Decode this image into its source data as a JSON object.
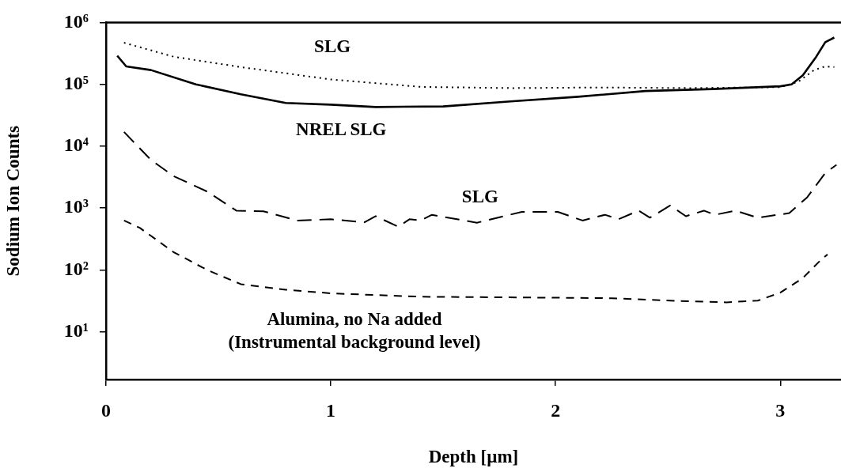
{
  "chart_data": {
    "type": "line",
    "xlabel": "Depth [µm]",
    "ylabel": "Sodium Ion Counts",
    "log": "y",
    "grid": false,
    "marker": "none",
    "xlim": [
      0,
      3.27
    ],
    "xticks": [
      0,
      1,
      2,
      3
    ],
    "ylim": [
      1.7,
      1000000
    ],
    "yticks": [
      {
        "value": 10,
        "label": "10¹"
      },
      {
        "value": 100,
        "label": "10²"
      },
      {
        "value": 1000,
        "label": "10³"
      },
      {
        "value": 10000,
        "label": "10⁴"
      },
      {
        "value": 100000,
        "label": "10⁵"
      },
      {
        "value": 1000000,
        "label": "10⁶"
      }
    ],
    "series": [
      {
        "name": "SLG",
        "color": "#000000",
        "line_style": "dotted",
        "x": [
          0.08,
          0.3,
          0.6,
          1.0,
          1.4,
          1.8,
          2.2,
          2.6,
          3.0,
          3.08,
          3.15,
          3.2,
          3.24
        ],
        "values": [
          470000,
          280000,
          190000,
          120000,
          91000,
          87000,
          89000,
          87000,
          90000,
          110000,
          170000,
          195000,
          190000
        ]
      },
      {
        "name": "NREL SLG",
        "color": "#000000",
        "line_style": "solid",
        "x": [
          0.05,
          0.09,
          0.2,
          0.4,
          0.6,
          0.8,
          1.0,
          1.2,
          1.5,
          1.8,
          2.1,
          2.4,
          2.7,
          3.0,
          3.05,
          3.1,
          3.16,
          3.2,
          3.24
        ],
        "values": [
          290000,
          195000,
          170000,
          100000,
          69000,
          50000,
          47000,
          43000,
          44000,
          53000,
          63000,
          78000,
          84000,
          93000,
          100000,
          140000,
          280000,
          480000,
          570000
        ]
      },
      {
        "name": "SLG",
        "color": "#000000",
        "line_style": "dashed",
        "x": [
          0.08,
          0.2,
          0.3,
          0.45,
          0.58,
          0.7,
          0.85,
          1.0,
          1.15,
          1.2,
          1.3,
          1.35,
          1.4,
          1.45,
          1.65,
          1.85,
          2.01,
          2.12,
          2.22,
          2.28,
          2.37,
          2.42,
          2.51,
          2.58,
          2.66,
          2.71,
          2.8,
          2.9,
          3.04,
          3.12,
          3.2,
          3.25
        ],
        "values": [
          17000,
          6000,
          3300,
          1850,
          910,
          890,
          630,
          660,
          590,
          740,
          500,
          660,
          630,
          780,
          580,
          870,
          870,
          630,
          780,
          660,
          910,
          700,
          1100,
          740,
          910,
          780,
          910,
          700,
          830,
          1500,
          3700,
          5000
        ]
      },
      {
        "name": "Alumina, no Na added\n(Instrumental background level)",
        "color": "#000000",
        "line_style": "dashed",
        "x": [
          0.08,
          0.15,
          0.3,
          0.45,
          0.6,
          0.8,
          1.0,
          1.4,
          1.85,
          2.25,
          2.51,
          2.76,
          2.9,
          3.0,
          3.1,
          3.18,
          3.21
        ],
        "values": [
          630,
          480,
          195,
          100,
          59,
          48,
          42,
          37,
          36,
          35,
          32,
          30,
          32,
          43,
          74,
          145,
          178
        ]
      }
    ]
  }
}
